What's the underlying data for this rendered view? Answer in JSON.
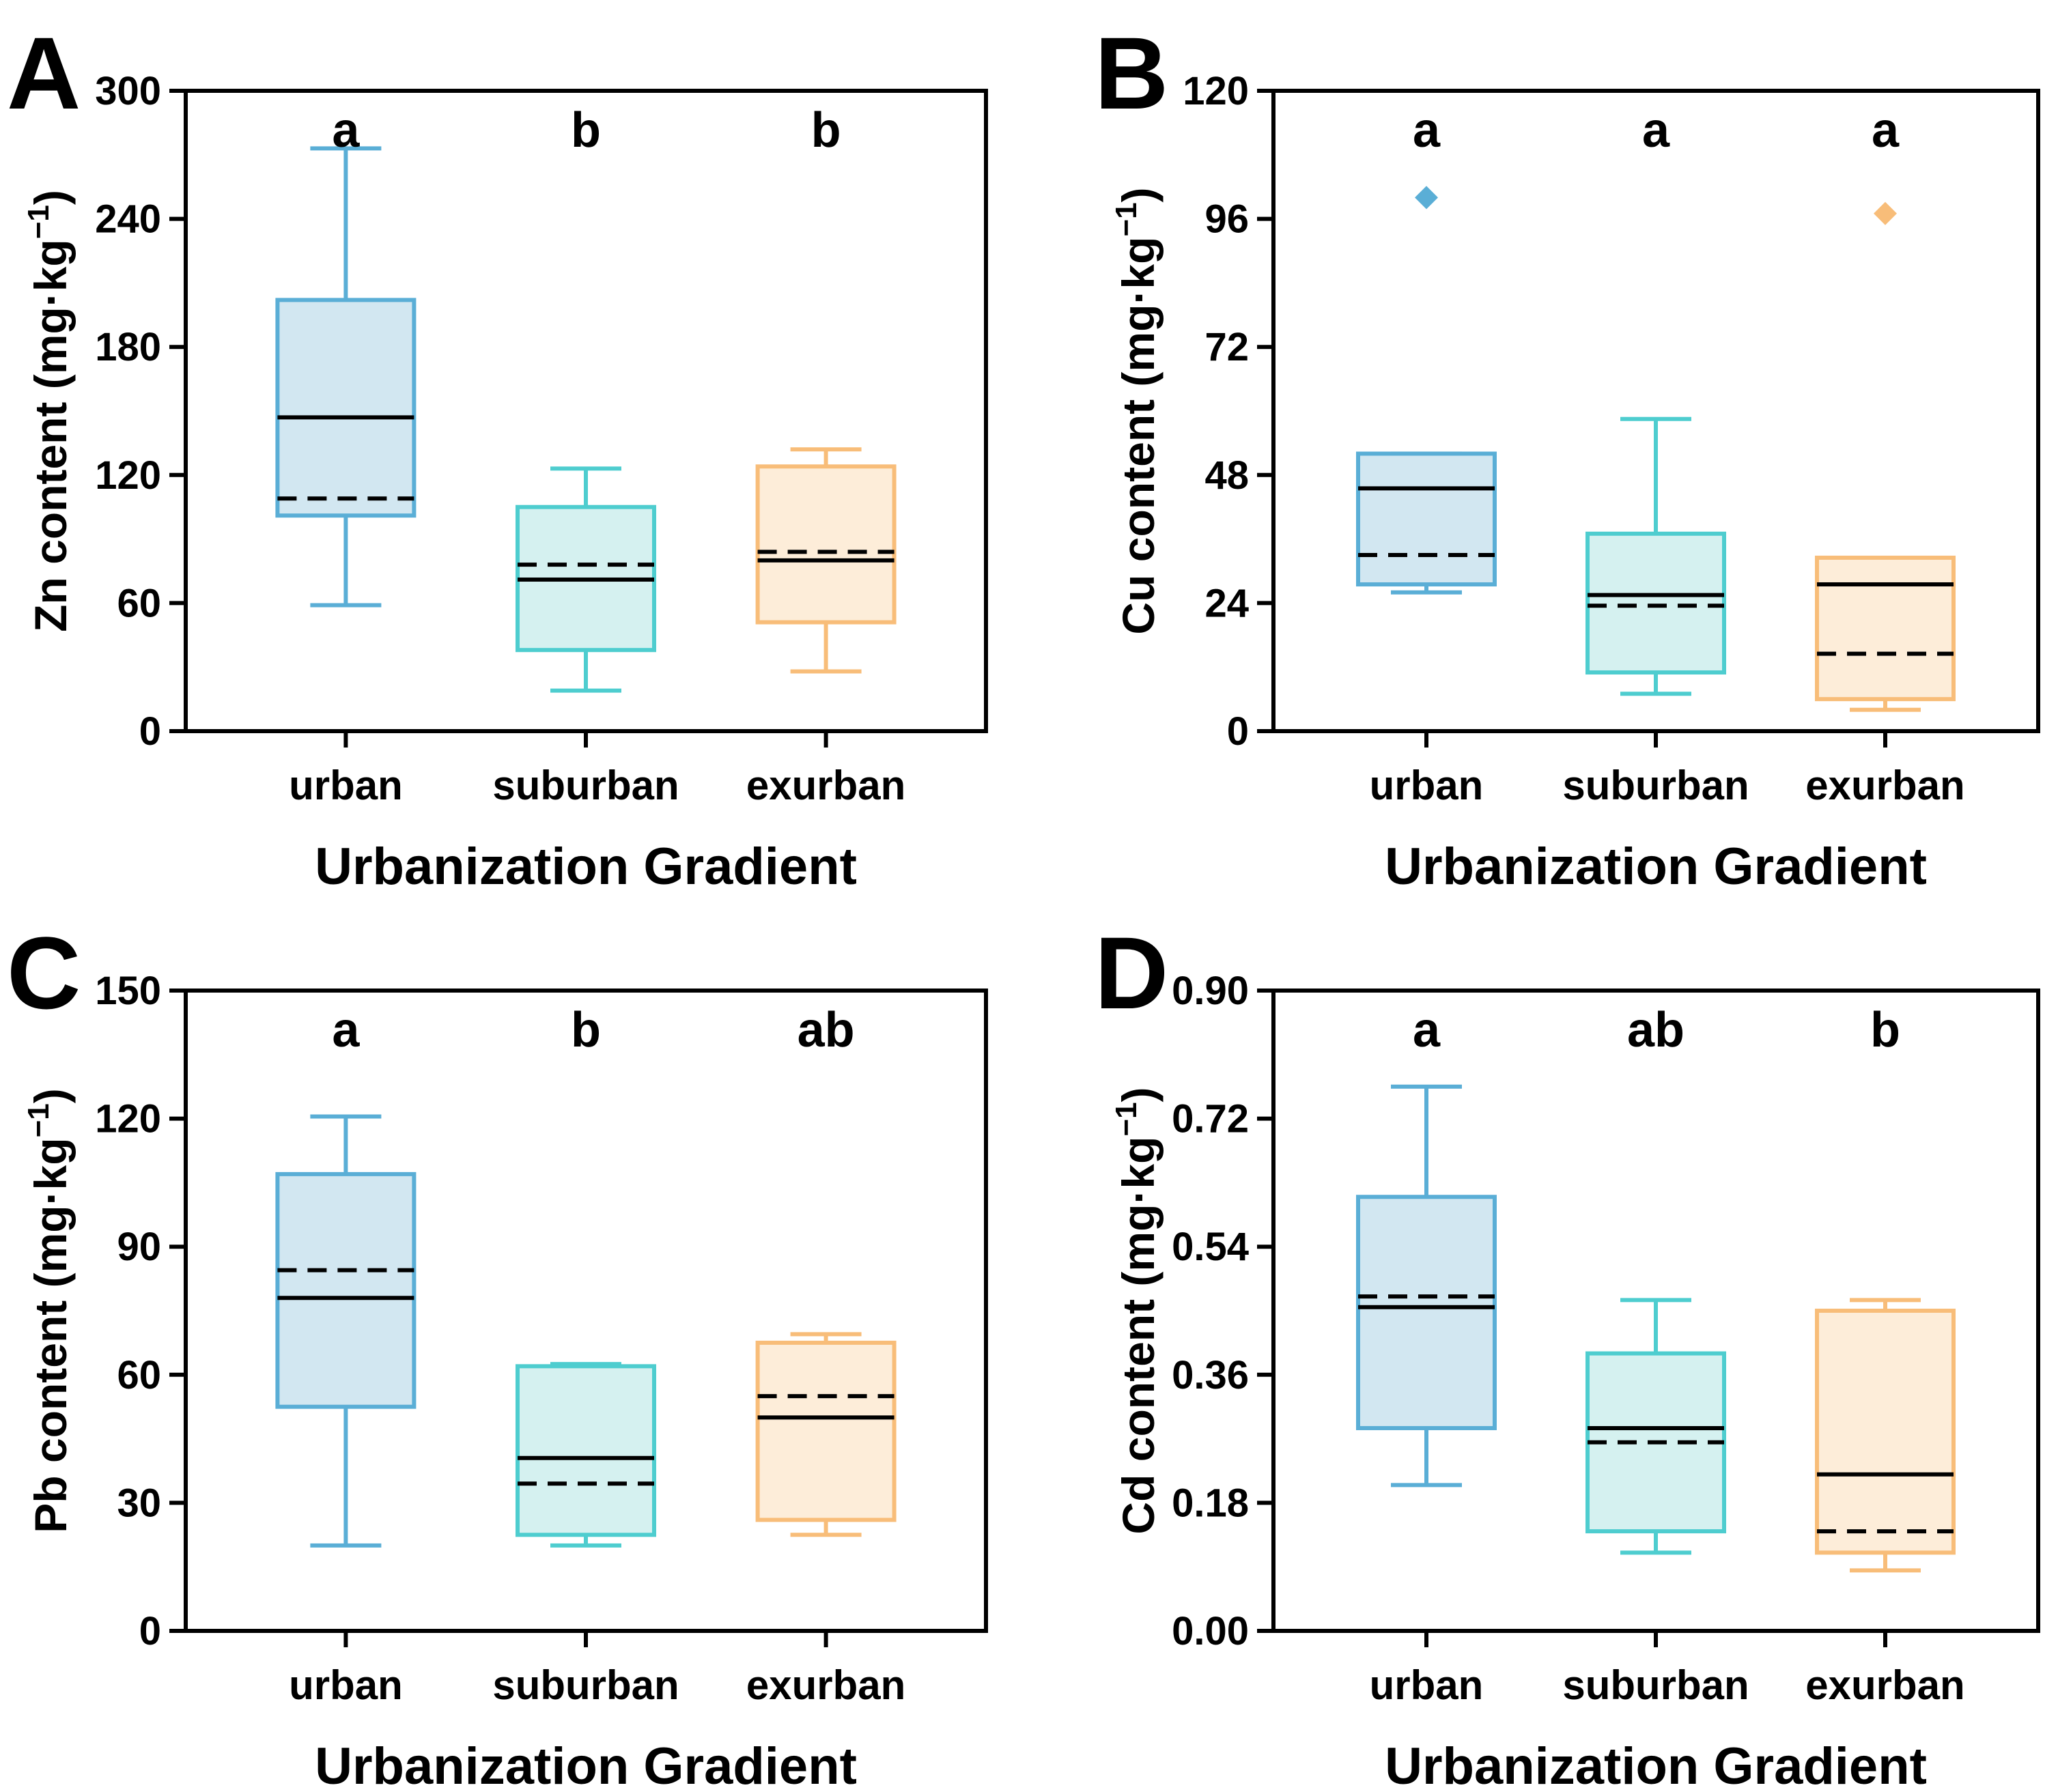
{
  "colors": {
    "urban": {
      "stroke": "#5AAED6",
      "fill": "#D2E7F1"
    },
    "suburban": {
      "stroke": "#4ECDCF",
      "fill": "#D5F1F0"
    },
    "exurban": {
      "stroke": "#F8BD79",
      "fill": "#FDEDD9"
    }
  },
  "chart_data": [
    {
      "type": "box",
      "panel_label": "A",
      "title": "",
      "xlabel": "Urbanization Gradient",
      "ylabel_main": "Zn content (mg·kg",
      "ylabel_sup": "−1",
      "ylabel_close": ")",
      "ylim": [
        0,
        300
      ],
      "yticks": [
        "0",
        "60",
        "120",
        "180",
        "240",
        "300"
      ],
      "categories": [
        "urban",
        "suburban",
        "exurban"
      ],
      "significance": [
        "a",
        "b",
        "b"
      ],
      "boxes": [
        {
          "min": 59,
          "q1": 101,
          "median": 147,
          "q3": 202,
          "max": 273,
          "mean": 109,
          "outliers": []
        },
        {
          "min": 19,
          "q1": 38,
          "median": 71,
          "q3": 105,
          "max": 123,
          "mean": 78,
          "outliers": []
        },
        {
          "min": 28,
          "q1": 51,
          "median": 80,
          "q3": 124,
          "max": 132,
          "mean": 84,
          "outliers": []
        }
      ]
    },
    {
      "type": "box",
      "panel_label": "B",
      "title": "",
      "xlabel": "Urbanization Gradient",
      "ylabel_main": "Cu content (mg·kg",
      "ylabel_sup": "−1",
      "ylabel_close": ")",
      "ylim": [
        0,
        120
      ],
      "yticks": [
        "0",
        "24",
        "48",
        "72",
        "96",
        "120"
      ],
      "categories": [
        "urban",
        "suburban",
        "exurban"
      ],
      "significance": [
        "a",
        "a",
        "a"
      ],
      "boxes": [
        {
          "min": 26,
          "q1": 27.5,
          "median": 45.5,
          "q3": 52,
          "max": 52,
          "mean": 33,
          "outliers": [
            100
          ]
        },
        {
          "min": 7,
          "q1": 11,
          "median": 25.5,
          "q3": 37,
          "max": 58.5,
          "mean": 23.5,
          "outliers": []
        },
        {
          "min": 4,
          "q1": 6,
          "median": 27.5,
          "q3": 32.5,
          "max": 32.5,
          "mean": 14.5,
          "outliers": [
            97
          ]
        }
      ]
    },
    {
      "type": "box",
      "panel_label": "C",
      "title": "",
      "xlabel": "Urbanization Gradient",
      "ylabel_main": "Pb content (mg·kg",
      "ylabel_sup": "−1",
      "ylabel_close": ")",
      "ylim": [
        0,
        150
      ],
      "yticks": [
        "0",
        "30",
        "60",
        "90",
        "120",
        "150"
      ],
      "categories": [
        "urban",
        "suburban",
        "exurban"
      ],
      "significance": [
        "a",
        "b",
        "ab"
      ],
      "boxes": [
        {
          "min": 20,
          "q1": 52.5,
          "median": 78,
          "q3": 107,
          "max": 120.5,
          "mean": 84.5,
          "outliers": []
        },
        {
          "min": 20,
          "q1": 22.5,
          "median": 40.5,
          "q3": 62,
          "max": 62.5,
          "mean": 34.5,
          "outliers": []
        },
        {
          "min": 22.5,
          "q1": 26,
          "median": 50,
          "q3": 67.5,
          "max": 69.5,
          "mean": 55,
          "outliers": []
        }
      ]
    },
    {
      "type": "box",
      "panel_label": "D",
      "title": "",
      "xlabel": "Urbanization Gradient",
      "ylabel_main": "Cd content (mg·kg",
      "ylabel_sup": "−1",
      "ylabel_close": ")",
      "ylim": [
        0,
        0.9
      ],
      "yticks": [
        "0.00",
        "0.18",
        "0.36",
        "0.54",
        "0.72",
        "0.90"
      ],
      "categories": [
        "urban",
        "suburban",
        "exurban"
      ],
      "significance": [
        "a",
        "ab",
        "b"
      ],
      "boxes": [
        {
          "min": 0.205,
          "q1": 0.285,
          "median": 0.455,
          "q3": 0.61,
          "max": 0.765,
          "mean": 0.47,
          "outliers": []
        },
        {
          "min": 0.11,
          "q1": 0.14,
          "median": 0.285,
          "q3": 0.39,
          "max": 0.465,
          "mean": 0.265,
          "outliers": []
        },
        {
          "min": 0.085,
          "q1": 0.11,
          "median": 0.22,
          "q3": 0.45,
          "max": 0.465,
          "mean": 0.14,
          "outliers": []
        }
      ]
    }
  ]
}
